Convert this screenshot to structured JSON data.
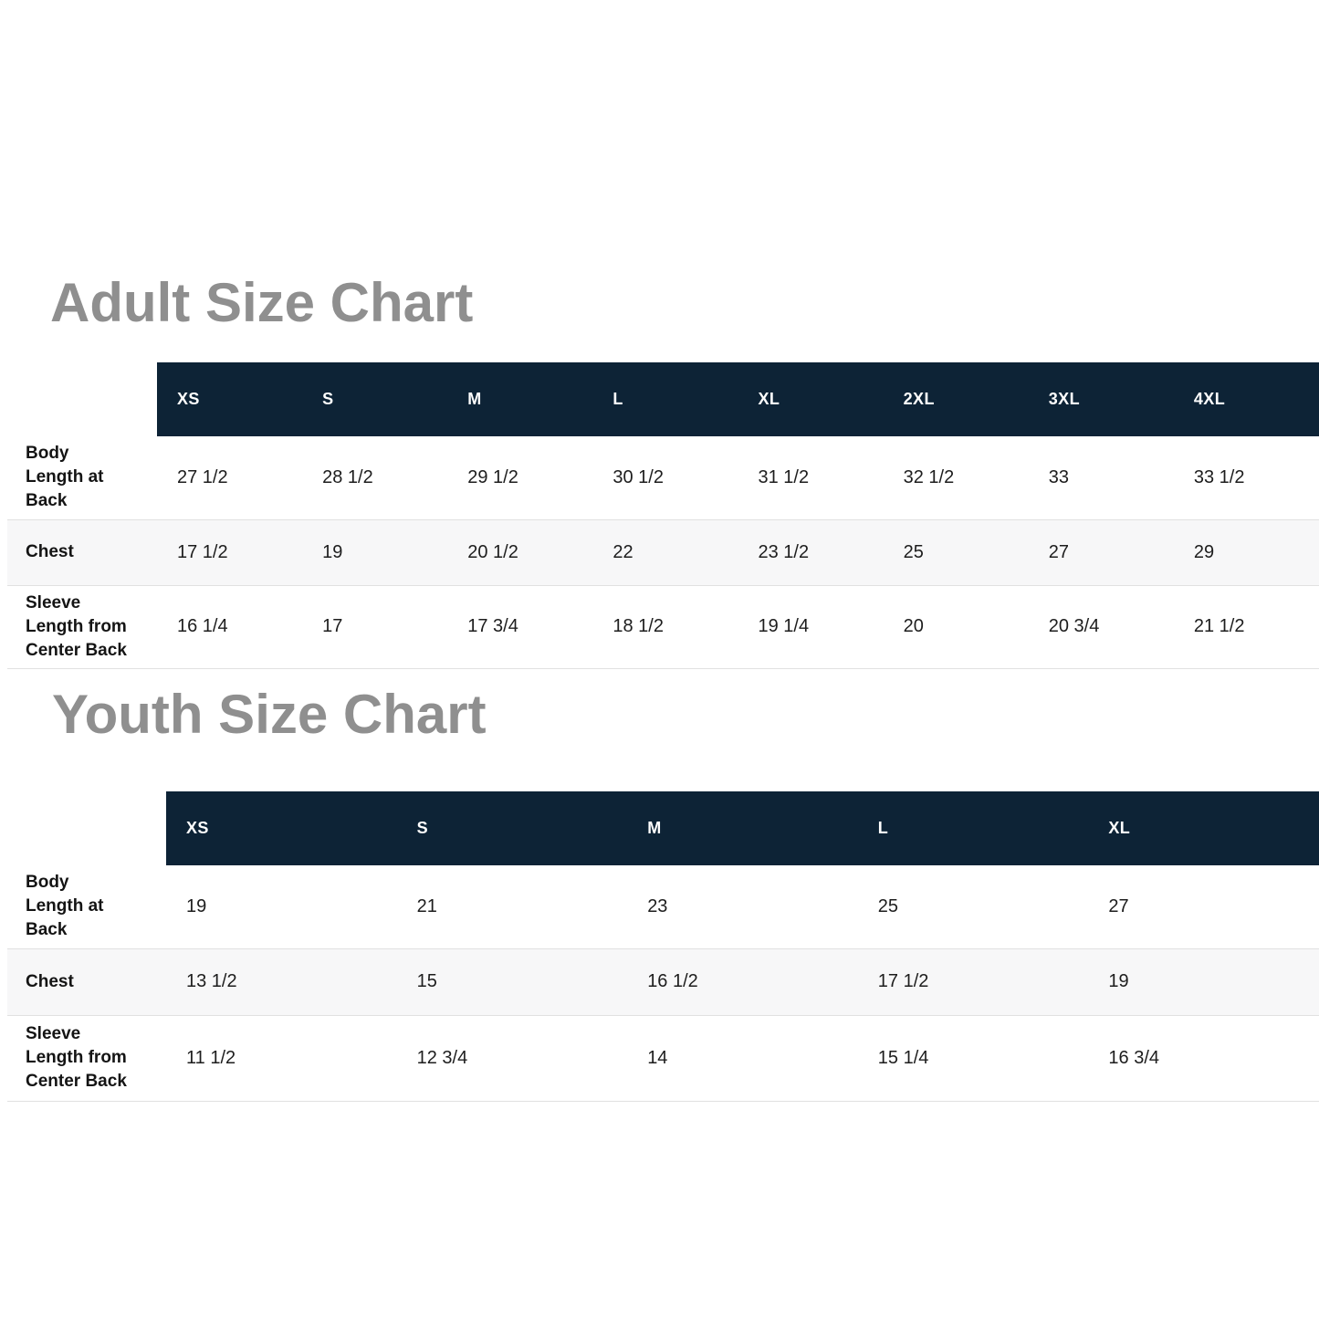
{
  "colors": {
    "header_bg": "#0d2336",
    "header_text": "#ffffff",
    "title_text": "#8f8f8f",
    "alt_row_bg": "#f7f7f8",
    "separator": "#e1e1e1"
  },
  "adult_chart": {
    "title": "Adult Size Chart",
    "columns": [
      "XS",
      "S",
      "M",
      "L",
      "XL",
      "2XL",
      "3XL",
      "4XL"
    ],
    "rows": [
      {
        "label": "Body Length at Back",
        "values": [
          "27 1/2",
          "28 1/2",
          "29 1/2",
          "30 1/2",
          "31 1/2",
          "32 1/2",
          "33",
          "33 1/2"
        ]
      },
      {
        "label": "Chest",
        "values": [
          "17 1/2",
          "19",
          "20 1/2",
          "22",
          "23 1/2",
          "25",
          "27",
          "29"
        ]
      },
      {
        "label": "Sleeve Length from Center Back",
        "values": [
          "16 1/4",
          "17",
          "17 3/4",
          "18 1/2",
          "19 1/4",
          "20",
          "20 3/4",
          "21 1/2"
        ]
      }
    ]
  },
  "youth_chart": {
    "title": "Youth Size Chart",
    "columns": [
      "XS",
      "S",
      "M",
      "L",
      "XL"
    ],
    "rows": [
      {
        "label": "Body Length at Back",
        "values": [
          "19",
          "21",
          "23",
          "25",
          "27"
        ]
      },
      {
        "label": "Chest",
        "values": [
          "13 1/2",
          "15",
          "16 1/2",
          "17 1/2",
          "19"
        ]
      },
      {
        "label": "Sleeve Length from Center Back",
        "values": [
          "11 1/2",
          "12 3/4",
          "14",
          "15 1/4",
          "16 3/4"
        ]
      }
    ]
  }
}
